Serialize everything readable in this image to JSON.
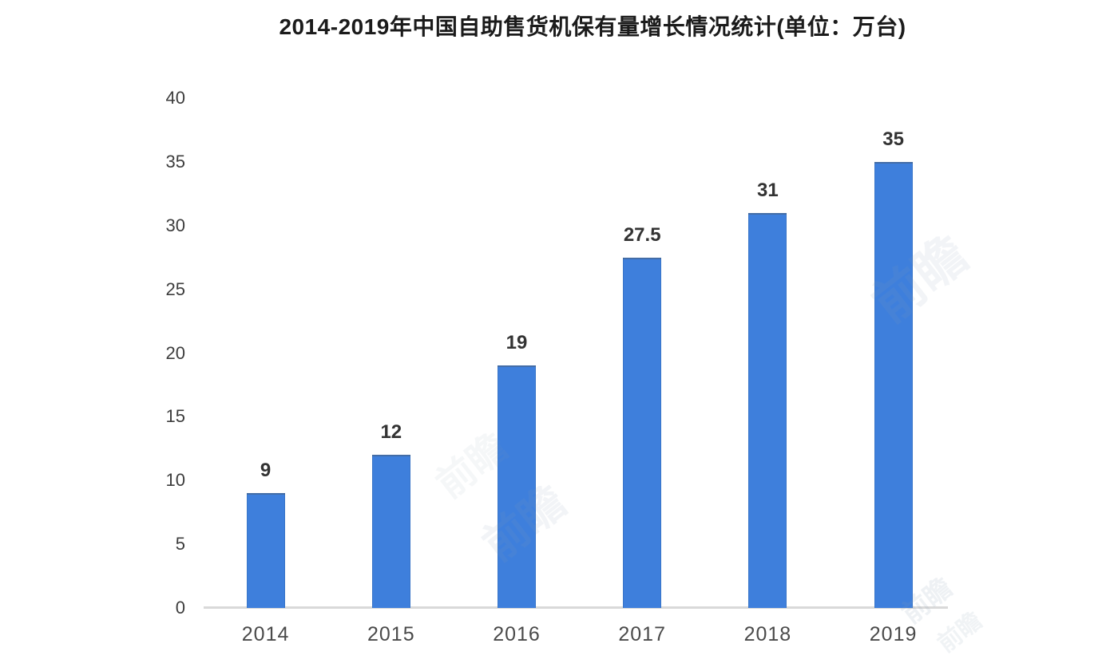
{
  "chart_data": {
    "type": "bar",
    "title": "2014-2019年中国自助售货机保有量增长情况统计(单位：万台)",
    "categories": [
      "2014",
      "2015",
      "2016",
      "2017",
      "2018",
      "2019"
    ],
    "values": [
      9,
      12,
      19,
      27.5,
      31,
      35
    ],
    "data_labels": [
      "9",
      "12",
      "19",
      "27.5",
      "31",
      "35"
    ],
    "y_ticks": [
      0,
      5,
      10,
      15,
      20,
      25,
      30,
      35,
      40
    ],
    "ylim": [
      0,
      40
    ],
    "xlabel": "",
    "ylabel": "",
    "unit": "万台",
    "bar_color": "#3e7fdc",
    "grid": "off",
    "legend": "none"
  },
  "watermark": {
    "text": "前瞻"
  }
}
